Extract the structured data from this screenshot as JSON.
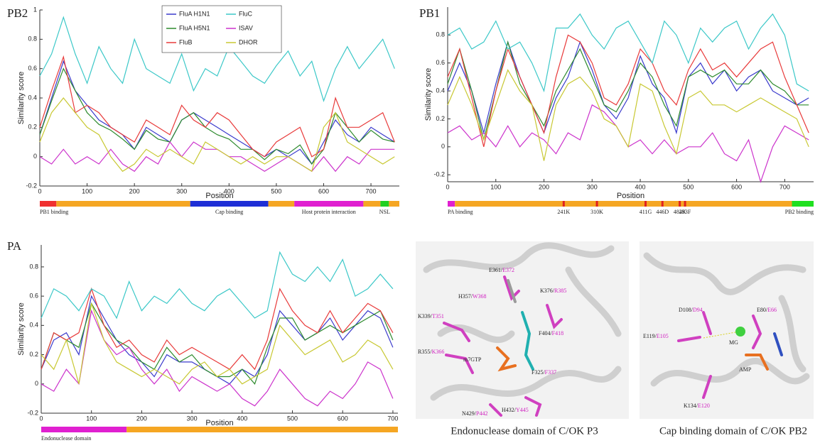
{
  "chart_data": [
    {
      "type": "line",
      "title": "PB2",
      "ylabel": "Similarity score",
      "xlabel": "Position",
      "xlim": [
        0,
        760
      ],
      "xticks": [
        0,
        100,
        200,
        300,
        400,
        500,
        600,
        700
      ],
      "ylim": [
        -0.2,
        1
      ],
      "yticks": [
        -0.2,
        0,
        0.2,
        0.4,
        0.6,
        0.8,
        1
      ],
      "legend": "top",
      "x": [
        0,
        25,
        50,
        75,
        100,
        125,
        150,
        175,
        200,
        225,
        250,
        275,
        300,
        325,
        350,
        375,
        400,
        425,
        450,
        475,
        500,
        525,
        550,
        575,
        600,
        625,
        650,
        675,
        700,
        725,
        750
      ],
      "series": [
        {
          "name": "FluA H1N1",
          "color": "#3a3acc",
          "values": [
            0.15,
            0.4,
            0.65,
            0.45,
            0.35,
            0.25,
            0.2,
            0.15,
            0.05,
            0.2,
            0.15,
            0.1,
            0.25,
            0.3,
            0.25,
            0.2,
            0.15,
            0.1,
            0.05,
            0.0,
            0.05,
            0.0,
            0.05,
            -0.05,
            0.1,
            0.25,
            0.15,
            0.1,
            0.2,
            0.15,
            0.1
          ]
        },
        {
          "name": "FluA H5N1",
          "color": "#2e8b2e",
          "values": [
            0.15,
            0.38,
            0.6,
            0.45,
            0.3,
            0.22,
            0.18,
            0.12,
            0.05,
            0.18,
            0.12,
            0.1,
            0.25,
            0.3,
            0.2,
            0.15,
            0.12,
            0.05,
            0.05,
            -0.02,
            0.05,
            0.02,
            0.08,
            -0.05,
            0.05,
            0.3,
            0.2,
            0.1,
            0.18,
            0.12,
            0.1
          ]
        },
        {
          "name": "FluB",
          "color": "#e83a3a",
          "values": [
            0.2,
            0.45,
            0.68,
            0.3,
            0.35,
            0.3,
            0.2,
            0.15,
            0.1,
            0.25,
            0.2,
            0.15,
            0.35,
            0.25,
            0.2,
            0.3,
            0.25,
            0.15,
            0.05,
            0.0,
            0.1,
            0.15,
            0.2,
            0.0,
            0.05,
            0.4,
            0.2,
            0.2,
            0.25,
            0.3,
            0.1
          ]
        },
        {
          "name": "FluC",
          "color": "#3cc8c8",
          "values": [
            0.55,
            0.7,
            0.95,
            0.7,
            0.5,
            0.75,
            0.6,
            0.5,
            0.8,
            0.6,
            0.55,
            0.5,
            0.7,
            0.45,
            0.6,
            0.55,
            0.75,
            0.65,
            0.55,
            0.5,
            0.62,
            0.72,
            0.55,
            0.65,
            0.38,
            0.6,
            0.75,
            0.6,
            0.7,
            0.8,
            0.6
          ]
        },
        {
          "name": "ISAV",
          "color": "#cc33cc",
          "values": [
            0.0,
            -0.05,
            0.05,
            -0.05,
            0.0,
            -0.05,
            0.05,
            -0.05,
            -0.1,
            0.0,
            -0.05,
            0.1,
            0.0,
            0.1,
            0.05,
            0.05,
            0.0,
            0.0,
            -0.05,
            -0.1,
            -0.05,
            0.0,
            -0.05,
            -0.1,
            0.0,
            -0.1,
            0.0,
            -0.05,
            0.05,
            0.05,
            0.05
          ]
        },
        {
          "name": "DHOR",
          "color": "#c8c832",
          "values": [
            0.1,
            0.3,
            0.4,
            0.3,
            0.2,
            0.15,
            0.0,
            -0.1,
            -0.05,
            0.05,
            0.0,
            0.05,
            0.0,
            -0.05,
            0.1,
            0.05,
            0.0,
            -0.05,
            0.0,
            -0.05,
            0.0,
            0.0,
            -0.05,
            -0.1,
            0.2,
            0.3,
            0.1,
            0.05,
            0.0,
            -0.05,
            0.0
          ]
        }
      ],
      "domains": [
        {
          "start": 0,
          "end": 35,
          "color": "#f03030",
          "label": "PB1 binding"
        },
        {
          "start": 35,
          "end": 318,
          "color": "#f5a623"
        },
        {
          "start": 318,
          "end": 483,
          "color": "#1f2fd6",
          "label": "Cap binding"
        },
        {
          "start": 483,
          "end": 538,
          "color": "#f5a623"
        },
        {
          "start": 538,
          "end": 684,
          "color": "#e020d0",
          "label": "Host protein interaction"
        },
        {
          "start": 684,
          "end": 720,
          "color": "#f5a623"
        },
        {
          "start": 720,
          "end": 738,
          "color": "#20d020",
          "label": "NSL"
        },
        {
          "start": 738,
          "end": 760,
          "color": "#f5a623"
        }
      ]
    },
    {
      "type": "line",
      "title": "PB1",
      "ylabel": "Similarity score",
      "xlabel": "Position",
      "xlim": [
        0,
        760
      ],
      "xticks": [
        0,
        100,
        200,
        300,
        400,
        500,
        600,
        700
      ],
      "ylim": [
        -0.25,
        1
      ],
      "yticks": [
        -0.2,
        0,
        0.2,
        0.4,
        0.6,
        0.8
      ],
      "x": [
        0,
        25,
        50,
        75,
        100,
        125,
        150,
        175,
        200,
        225,
        250,
        275,
        300,
        325,
        350,
        375,
        400,
        425,
        450,
        475,
        500,
        525,
        550,
        575,
        600,
        625,
        650,
        675,
        700,
        725,
        750
      ],
      "series": [
        {
          "color": "#3a3acc",
          "values": [
            0.4,
            0.6,
            0.4,
            0.1,
            0.45,
            0.75,
            0.5,
            0.3,
            0.1,
            0.35,
            0.5,
            0.75,
            0.55,
            0.3,
            0.2,
            0.35,
            0.65,
            0.45,
            0.35,
            0.1,
            0.5,
            0.6,
            0.45,
            0.55,
            0.4,
            0.5,
            0.55,
            0.4,
            0.35,
            0.3,
            0.35
          ]
        },
        {
          "color": "#2e8b2e",
          "values": [
            0.45,
            0.7,
            0.4,
            0.05,
            0.4,
            0.75,
            0.45,
            0.3,
            0.15,
            0.4,
            0.55,
            0.7,
            0.5,
            0.3,
            0.25,
            0.4,
            0.6,
            0.5,
            0.3,
            0.15,
            0.5,
            0.55,
            0.5,
            0.55,
            0.45,
            0.45,
            0.55,
            0.45,
            0.4,
            0.3,
            0.3
          ]
        },
        {
          "color": "#e83a3a",
          "values": [
            0.5,
            0.7,
            0.35,
            0.0,
            0.4,
            0.7,
            0.5,
            0.3,
            0.1,
            0.5,
            0.8,
            0.75,
            0.6,
            0.35,
            0.3,
            0.45,
            0.7,
            0.6,
            0.4,
            0.3,
            0.55,
            0.7,
            0.55,
            0.6,
            0.5,
            0.6,
            0.7,
            0.75,
            0.5,
            0.3,
            0.1
          ]
        },
        {
          "color": "#3cc8c8",
          "values": [
            0.8,
            0.85,
            0.7,
            0.75,
            0.9,
            0.7,
            0.75,
            0.6,
            0.4,
            0.85,
            0.85,
            0.95,
            0.8,
            0.7,
            0.85,
            0.9,
            0.75,
            0.6,
            0.9,
            0.8,
            0.6,
            0.85,
            0.75,
            0.85,
            0.9,
            0.7,
            0.85,
            0.95,
            0.8,
            0.45,
            0.4
          ]
        },
        {
          "color": "#cc33cc",
          "values": [
            0.1,
            0.15,
            0.05,
            0.1,
            0.0,
            0.15,
            0.0,
            0.1,
            0.05,
            -0.05,
            0.1,
            0.05,
            0.3,
            0.25,
            0.15,
            0.0,
            0.05,
            -0.05,
            0.05,
            -0.05,
            0.0,
            0.0,
            0.1,
            -0.05,
            -0.1,
            0.05,
            -0.25,
            0.0,
            0.15,
            0.1,
            0.05
          ]
        },
        {
          "color": "#c8c832",
          "values": [
            0.3,
            0.5,
            0.3,
            0.05,
            0.3,
            0.55,
            0.4,
            0.3,
            -0.1,
            0.3,
            0.45,
            0.5,
            0.4,
            0.2,
            0.15,
            0.0,
            0.45,
            0.4,
            0.15,
            -0.05,
            0.35,
            0.4,
            0.3,
            0.3,
            0.25,
            0.3,
            0.35,
            0.3,
            0.25,
            0.2,
            0.0
          ]
        }
      ],
      "domains": [
        {
          "start": 0,
          "end": 15,
          "color": "#e020d0",
          "label": "PA binding"
        },
        {
          "start": 15,
          "end": 715,
          "color": "#f5a623"
        },
        {
          "start": 715,
          "end": 760,
          "color": "#20e020",
          "label": "PB2 binding"
        }
      ],
      "mutations": [
        {
          "position": 241,
          "label": "241K"
        },
        {
          "position": 310,
          "label": "310K"
        },
        {
          "position": 411,
          "label": "411G"
        },
        {
          "position": 446,
          "label": "446D"
        },
        {
          "position": 482,
          "label": "482K"
        },
        {
          "position": 493,
          "label": "493F"
        }
      ]
    },
    {
      "type": "line",
      "title": "PA",
      "ylabel": "Similarity score",
      "xlabel": "Position",
      "xlim": [
        0,
        710
      ],
      "xticks": [
        0,
        100,
        200,
        300,
        400,
        500,
        600,
        700
      ],
      "ylim": [
        -0.2,
        0.95
      ],
      "yticks": [
        -0.2,
        0,
        0.2,
        0.4,
        0.6,
        0.8
      ],
      "x": [
        0,
        25,
        50,
        75,
        100,
        125,
        150,
        175,
        200,
        225,
        250,
        275,
        300,
        325,
        350,
        375,
        400,
        425,
        450,
        475,
        500,
        525,
        550,
        575,
        600,
        625,
        650,
        675,
        700
      ],
      "series": [
        {
          "color": "#3a3acc",
          "values": [
            0.1,
            0.3,
            0.35,
            0.2,
            0.6,
            0.45,
            0.3,
            0.2,
            0.15,
            0.05,
            0.2,
            0.15,
            0.15,
            0.1,
            0.05,
            0.0,
            0.1,
            0.05,
            0.2,
            0.5,
            0.4,
            0.3,
            0.35,
            0.45,
            0.3,
            0.4,
            0.5,
            0.45,
            0.25
          ]
        },
        {
          "color": "#2e8b2e",
          "values": [
            0.1,
            0.35,
            0.3,
            0.25,
            0.55,
            0.4,
            0.3,
            0.25,
            0.15,
            0.1,
            0.25,
            0.15,
            0.2,
            0.1,
            0.05,
            0.05,
            0.1,
            0.0,
            0.25,
            0.45,
            0.45,
            0.3,
            0.35,
            0.4,
            0.35,
            0.4,
            0.45,
            0.5,
            0.3
          ]
        },
        {
          "color": "#e83a3a",
          "values": [
            0.1,
            0.35,
            0.3,
            0.35,
            0.65,
            0.4,
            0.25,
            0.3,
            0.2,
            0.15,
            0.3,
            0.2,
            0.25,
            0.2,
            0.15,
            0.1,
            0.2,
            0.1,
            0.3,
            0.65,
            0.5,
            0.4,
            0.35,
            0.5,
            0.35,
            0.45,
            0.55,
            0.5,
            0.35
          ]
        },
        {
          "color": "#3cc8c8",
          "values": [
            0.45,
            0.65,
            0.6,
            0.5,
            0.65,
            0.6,
            0.45,
            0.7,
            0.5,
            0.6,
            0.55,
            0.65,
            0.55,
            0.5,
            0.6,
            0.65,
            0.55,
            0.45,
            0.5,
            0.9,
            0.75,
            0.7,
            0.8,
            0.7,
            0.85,
            0.6,
            0.65,
            0.75,
            0.65
          ]
        },
        {
          "color": "#cc33cc",
          "values": [
            0.0,
            -0.05,
            0.1,
            0.0,
            0.5,
            0.3,
            0.2,
            0.25,
            0.1,
            0.0,
            0.1,
            -0.05,
            0.05,
            0.0,
            -0.05,
            0.0,
            -0.1,
            -0.15,
            -0.05,
            0.1,
            0.0,
            -0.1,
            -0.15,
            -0.05,
            -0.1,
            0.0,
            0.15,
            0.1,
            -0.1
          ]
        },
        {
          "color": "#c8c832",
          "values": [
            0.2,
            0.1,
            0.3,
            0.0,
            0.55,
            0.3,
            0.15,
            0.1,
            0.05,
            0.1,
            0.05,
            0.0,
            0.1,
            0.15,
            0.05,
            0.1,
            0.0,
            0.05,
            0.1,
            0.4,
            0.3,
            0.2,
            0.25,
            0.3,
            0.15,
            0.2,
            0.3,
            0.25,
            0.1
          ]
        }
      ],
      "domains": [
        {
          "start": 0,
          "end": 170,
          "color": "#e020d0",
          "label": "Endonuclease domain"
        },
        {
          "start": 170,
          "end": 710,
          "color": "#f5a623"
        }
      ]
    }
  ],
  "structures": [
    {
      "caption": "Endonuclease domain of C/OK P3",
      "labels": [
        {
          "wt": "E361/",
          "mut": "E372"
        },
        {
          "wt": "H357/",
          "mut": "W368"
        },
        {
          "wt": "K376/",
          "mut": "R385"
        },
        {
          "wt": "K339/",
          "mut": "T351"
        },
        {
          "wt": "F404/",
          "mut": "F418"
        },
        {
          "wt": "m7GTP"
        },
        {
          "wt": "R355/",
          "mut": "K366"
        },
        {
          "wt": "F325/",
          "mut": "F337"
        },
        {
          "wt": "N429/",
          "mut": "P442"
        },
        {
          "wt": "H432/",
          "mut": "Y445"
        }
      ]
    },
    {
      "caption": "Cap binding domain of C/OK PB2",
      "labels": [
        {
          "wt": "D108/",
          "mut": "D94"
        },
        {
          "wt": "E80/",
          "mut": "E66"
        },
        {
          "wt": "E119/",
          "mut": "E105"
        },
        {
          "wt": "MG"
        },
        {
          "wt": "AMP"
        },
        {
          "wt": "K134/",
          "mut": "E120"
        }
      ]
    }
  ]
}
